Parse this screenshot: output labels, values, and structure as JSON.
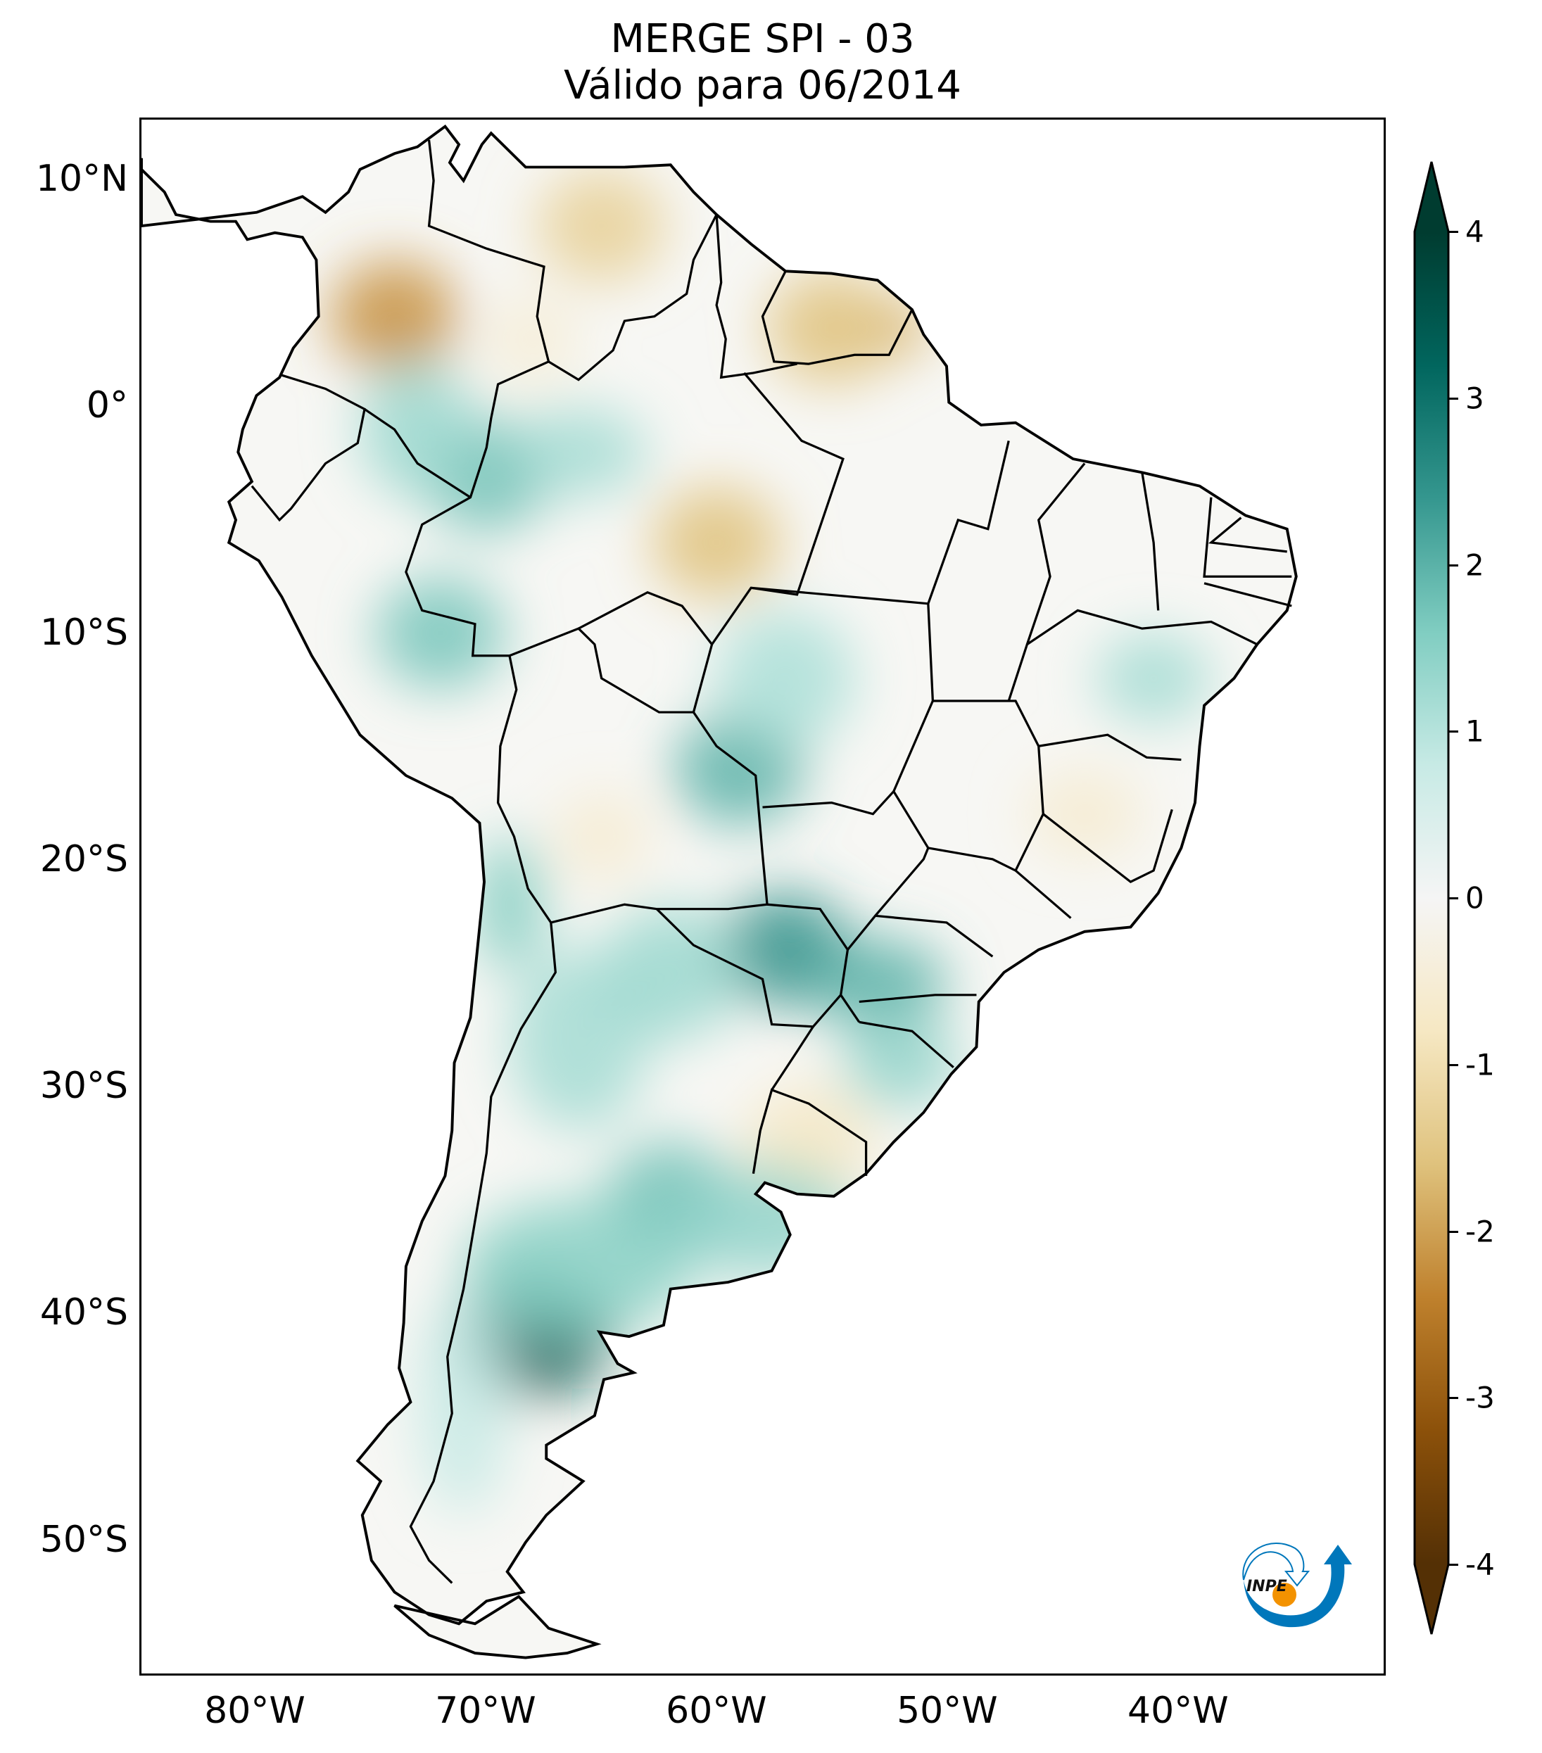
{
  "chart_data": {
    "type": "heatmap",
    "title": [
      "MERGE   SPI - 03",
      "Válido para 06/2014"
    ],
    "xlabel": "",
    "ylabel": "",
    "x_ticks": [
      {
        "value": -80,
        "label": "80°W"
      },
      {
        "value": -70,
        "label": "70°W"
      },
      {
        "value": -60,
        "label": "60°W"
      },
      {
        "value": -50,
        "label": "50°W"
      },
      {
        "value": -40,
        "label": "40°W"
      }
    ],
    "y_ticks": [
      {
        "value": 10,
        "label": "10°N"
      },
      {
        "value": 0,
        "label": "0°"
      },
      {
        "value": -10,
        "label": "10°S"
      },
      {
        "value": -20,
        "label": "20°S"
      },
      {
        "value": -30,
        "label": "30°S"
      },
      {
        "value": -40,
        "label": "40°S"
      },
      {
        "value": -50,
        "label": "50°S"
      }
    ],
    "xlim": [
      -85,
      -31
    ],
    "ylim": [
      -56,
      12.7
    ],
    "colorbar": {
      "cmap": "BrBG",
      "range": [
        -4,
        4
      ],
      "extend": "both",
      "ticks": [
        {
          "value": 4,
          "label": "4"
        },
        {
          "value": 3,
          "label": "3"
        },
        {
          "value": 2,
          "label": "2"
        },
        {
          "value": 1,
          "label": "1"
        },
        {
          "value": 0,
          "label": "0"
        },
        {
          "value": -1,
          "label": "-1"
        },
        {
          "value": -2,
          "label": "-2"
        },
        {
          "value": -3,
          "label": "-3"
        },
        {
          "value": -4,
          "label": "-4"
        }
      ],
      "colors": [
        "#543005",
        "#8c510a",
        "#bf812d",
        "#dfc27d",
        "#f6e8c3",
        "#f5f5f5",
        "#c7eae5",
        "#80cdc1",
        "#35978f",
        "#01665e",
        "#003c30"
      ]
    },
    "regions": [
      {
        "lon": -68,
        "lat": -41,
        "spi": 3.3
      },
      {
        "lon": -57,
        "lat": -24,
        "spi": 2.5
      },
      {
        "lon": -59,
        "lat": -16,
        "spi": 2.0
      },
      {
        "lon": -70,
        "lat": -3,
        "spi": 1.8
      },
      {
        "lon": -62,
        "lat": -35,
        "spi": 1.8
      },
      {
        "lon": -72,
        "lat": -10,
        "spi": 1.7
      },
      {
        "lon": -74,
        "lat": 4,
        "spi": -2.2
      },
      {
        "lon": -65,
        "lat": 8,
        "spi": -1.3
      },
      {
        "lon": -55,
        "lat": 3.5,
        "spi": -1.6
      },
      {
        "lon": -60,
        "lat": -6,
        "spi": -1.6
      },
      {
        "lon": -56,
        "lat": -32.5,
        "spi": -0.8
      }
    ]
  },
  "logo": {
    "text": "INPE"
  }
}
